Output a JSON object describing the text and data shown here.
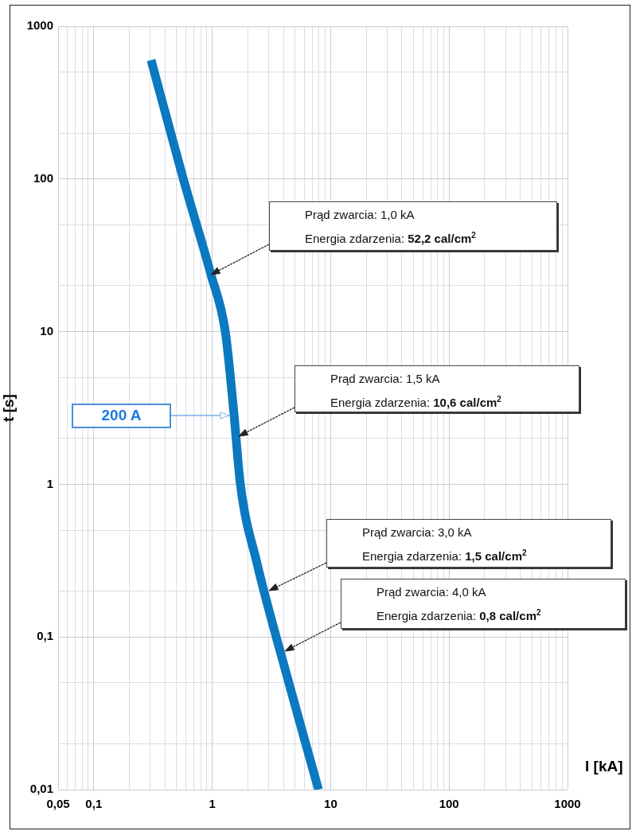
{
  "chart_data": {
    "type": "line",
    "xlabel": "I [kA]",
    "ylabel": "t [s]",
    "log": "xy",
    "grid": true,
    "legend": false,
    "marker": "none",
    "xlim": [
      0.05,
      1000
    ],
    "ylim": [
      0.01,
      1000
    ],
    "xticks": [
      {
        "value": 0.05,
        "label": "0,05"
      },
      {
        "value": 0.06,
        "label": null
      },
      {
        "value": 0.07,
        "label": null
      },
      {
        "value": 0.08,
        "label": null
      },
      {
        "value": 0.09,
        "label": null
      },
      {
        "value": 0.1,
        "label": "0,1"
      },
      {
        "value": 0.2,
        "label": null
      },
      {
        "value": 0.3,
        "label": null
      },
      {
        "value": 0.4,
        "label": null
      },
      {
        "value": 0.5,
        "label": null
      },
      {
        "value": 0.6,
        "label": null
      },
      {
        "value": 0.7,
        "label": null
      },
      {
        "value": 0.8,
        "label": null
      },
      {
        "value": 0.9,
        "label": null
      },
      1,
      {
        "value": 2,
        "label": null
      },
      {
        "value": 3,
        "label": null
      },
      {
        "value": 4,
        "label": null
      },
      {
        "value": 5,
        "label": null
      },
      {
        "value": 6,
        "label": null
      },
      {
        "value": 7,
        "label": null
      },
      {
        "value": 8,
        "label": null
      },
      {
        "value": 9,
        "label": null
      },
      10,
      {
        "value": 20,
        "label": null
      },
      {
        "value": 30,
        "label": null
      },
      {
        "value": 40,
        "label": null
      },
      {
        "value": 50,
        "label": null
      },
      {
        "value": 60,
        "label": null
      },
      {
        "value": 70,
        "label": null
      },
      {
        "value": 80,
        "label": null
      },
      {
        "value": 90,
        "label": null
      },
      100,
      {
        "value": 200,
        "label": null
      },
      {
        "value": 300,
        "label": null
      },
      {
        "value": 400,
        "label": null
      },
      {
        "value": 500,
        "label": null
      },
      {
        "value": 600,
        "label": null
      },
      {
        "value": 700,
        "label": null
      },
      {
        "value": 800,
        "label": null
      },
      {
        "value": 900,
        "label": null
      },
      1000
    ],
    "yticks": [
      {
        "value": 0.01,
        "label": "0,01"
      },
      {
        "value": 0.02,
        "label": null
      },
      {
        "value": 0.05,
        "label": null
      },
      {
        "value": 0.1,
        "label": "0,1"
      },
      {
        "value": 0.2,
        "label": null
      },
      {
        "value": 0.5,
        "label": null
      },
      1,
      {
        "value": 2,
        "label": null
      },
      {
        "value": 5,
        "label": null
      },
      10,
      {
        "value": 20,
        "label": null
      },
      {
        "value": 50,
        "label": null
      },
      100,
      {
        "value": 200,
        "label": null
      },
      {
        "value": 500,
        "label": null
      },
      1000
    ],
    "series": [
      {
        "color": "#0a79bf",
        "x": [
          0.305,
          0.57,
          0.97,
          1.29,
          1.52,
          1.73,
          2.4,
          3.47,
          7.9
        ],
        "values": [
          600,
          100,
          24,
          10,
          3,
          1,
          0.3,
          0.1,
          0.01
        ]
      }
    ],
    "annotations": [
      "Prąd zwarcia: 1,0 kA\nEnergia zdarzenia: 52,2 cal/cm$^{2}$",
      "Prąd zwarcia: 1,5 kA\nEnergia zdarzenia: 10,6 cal/cm$^{2}$",
      "Prąd zwarcia: 3,0 kA\nEnergia zdarzenia: 1,5 cal/cm$^{2}$",
      "Prąd zwarcia: 4,0 kA\nEnergia zdarzenia: 0,8 cal/cm$^{2}$",
      "200 A"
    ]
  }
}
